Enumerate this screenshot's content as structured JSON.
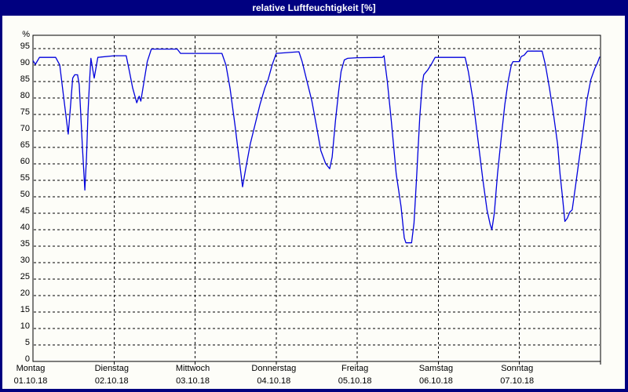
{
  "title_bar": {
    "text": "relative Luftfeuchtigkeit [%]"
  },
  "colors": {
    "titlebar_bg": "#000080",
    "titlebar_text": "#ffffff",
    "window_border": "#000080",
    "plot_border": "#000000",
    "grid": "#000000",
    "line": "#0000dd",
    "background": "#fdfdf8"
  },
  "chart_data": {
    "type": "line",
    "title": "relative Luftfeuchtigkeit [%]",
    "ylabel": "%",
    "xlabel": "",
    "ylim": [
      0,
      99
    ],
    "y_tick_step": 5,
    "y_ticks": [
      0,
      5,
      10,
      15,
      20,
      25,
      30,
      35,
      40,
      45,
      50,
      55,
      60,
      65,
      70,
      75,
      80,
      85,
      90,
      95
    ],
    "grid": "dashed",
    "legend_position": "none",
    "x_range_days": [
      0,
      7
    ],
    "x_days": [
      {
        "label": "Montag",
        "date": "01.10.18"
      },
      {
        "label": "Dienstag",
        "date": "02.10.18"
      },
      {
        "label": "Mittwoch",
        "date": "03.10.18"
      },
      {
        "label": "Donnerstag",
        "date": "04.10.18"
      },
      {
        "label": "Freitag",
        "date": "05.10.18"
      },
      {
        "label": "Samstag",
        "date": "06.10.18"
      },
      {
        "label": "Sonntag",
        "date": "07.10.18"
      }
    ],
    "series": [
      {
        "name": "relative Luftfeuchtigkeit",
        "unit": "%",
        "points": [
          [
            0.0,
            91.3
          ],
          [
            0.03,
            90.2
          ],
          [
            0.08,
            92.3
          ],
          [
            0.28,
            92.3
          ],
          [
            0.33,
            90
          ],
          [
            0.38,
            80
          ],
          [
            0.435,
            69
          ],
          [
            0.455,
            75
          ],
          [
            0.49,
            86
          ],
          [
            0.515,
            87
          ],
          [
            0.55,
            87
          ],
          [
            0.57,
            84
          ],
          [
            0.59,
            75
          ],
          [
            0.61,
            65
          ],
          [
            0.64,
            52
          ],
          [
            0.66,
            62
          ],
          [
            0.68,
            76
          ],
          [
            0.7,
            86
          ],
          [
            0.715,
            92
          ],
          [
            0.755,
            86
          ],
          [
            0.8,
            92.3
          ],
          [
            1.0,
            92.8
          ],
          [
            1.15,
            92.8
          ],
          [
            1.19,
            88
          ],
          [
            1.23,
            83
          ],
          [
            1.28,
            78.5
          ],
          [
            1.31,
            80.5
          ],
          [
            1.33,
            79
          ],
          [
            1.37,
            85
          ],
          [
            1.41,
            91
          ],
          [
            1.46,
            94.8
          ],
          [
            1.78,
            94.8
          ],
          [
            1.82,
            93.5
          ],
          [
            2.0,
            93.5
          ],
          [
            2.33,
            93.5
          ],
          [
            2.38,
            90
          ],
          [
            2.43,
            83
          ],
          [
            2.49,
            72
          ],
          [
            2.55,
            60
          ],
          [
            2.585,
            53
          ],
          [
            2.62,
            58
          ],
          [
            2.68,
            66
          ],
          [
            2.74,
            72
          ],
          [
            2.8,
            78
          ],
          [
            2.86,
            83
          ],
          [
            2.9,
            85.5
          ],
          [
            2.95,
            90
          ],
          [
            3.0,
            93.5
          ],
          [
            3.28,
            94
          ],
          [
            3.32,
            91
          ],
          [
            3.38,
            85
          ],
          [
            3.44,
            79
          ],
          [
            3.5,
            71
          ],
          [
            3.55,
            64
          ],
          [
            3.61,
            60
          ],
          [
            3.66,
            58.5
          ],
          [
            3.69,
            62
          ],
          [
            3.73,
            73
          ],
          [
            3.77,
            82
          ],
          [
            3.8,
            88
          ],
          [
            3.84,
            91.5
          ],
          [
            3.88,
            92
          ],
          [
            4.0,
            92.2
          ],
          [
            4.31,
            92.3
          ],
          [
            4.33,
            92.8
          ],
          [
            4.37,
            85
          ],
          [
            4.42,
            73
          ],
          [
            4.48,
            57
          ],
          [
            4.54,
            47
          ],
          [
            4.58,
            37.5
          ],
          [
            4.6,
            36
          ],
          [
            4.67,
            36
          ],
          [
            4.7,
            42
          ],
          [
            4.73,
            55
          ],
          [
            4.77,
            74
          ],
          [
            4.8,
            84
          ],
          [
            4.82,
            87
          ],
          [
            4.87,
            88.5
          ],
          [
            4.92,
            90.5
          ],
          [
            4.96,
            92.3
          ],
          [
            5.33,
            92.3
          ],
          [
            5.37,
            88
          ],
          [
            5.43,
            79
          ],
          [
            5.49,
            67
          ],
          [
            5.55,
            55
          ],
          [
            5.6,
            46
          ],
          [
            5.64,
            41.5
          ],
          [
            5.66,
            40
          ],
          [
            5.69,
            45
          ],
          [
            5.73,
            57
          ],
          [
            5.78,
            69
          ],
          [
            5.82,
            78
          ],
          [
            5.86,
            85
          ],
          [
            5.9,
            90
          ],
          [
            5.92,
            91
          ],
          [
            6.0,
            91
          ],
          [
            6.02,
            92.5
          ],
          [
            6.06,
            93
          ],
          [
            6.1,
            94.2
          ],
          [
            6.28,
            94.2
          ],
          [
            6.32,
            90
          ],
          [
            6.37,
            83
          ],
          [
            6.42,
            75
          ],
          [
            6.47,
            66
          ],
          [
            6.5,
            57
          ],
          [
            6.53,
            50
          ],
          [
            6.56,
            42.5
          ],
          [
            6.59,
            43.5
          ],
          [
            6.62,
            45.3
          ],
          [
            6.65,
            46
          ],
          [
            6.69,
            53
          ],
          [
            6.74,
            62
          ],
          [
            6.79,
            71
          ],
          [
            6.83,
            79
          ],
          [
            6.88,
            85.5
          ],
          [
            6.93,
            89
          ],
          [
            6.96,
            90.5
          ],
          [
            6.99,
            92.5
          ]
        ]
      }
    ]
  }
}
